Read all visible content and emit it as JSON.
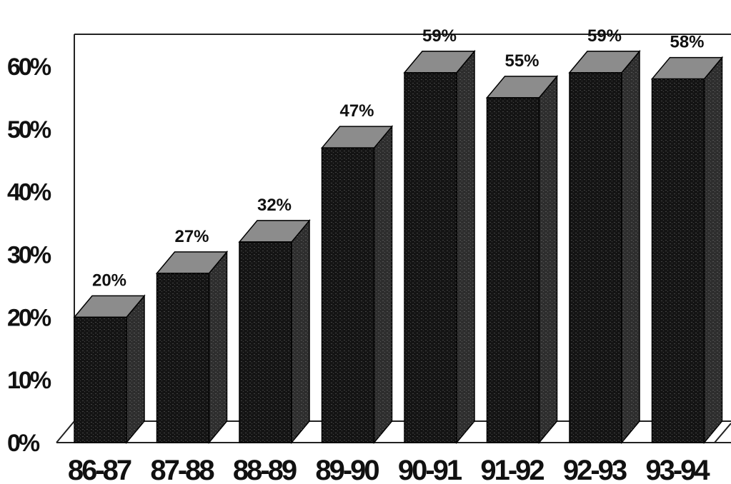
{
  "chart_data": {
    "type": "bar",
    "categories": [
      "86-87",
      "87-88",
      "88-89",
      "89-90",
      "90-91",
      "91-92",
      "92-93",
      "93-94"
    ],
    "values": [
      20,
      27,
      32,
      47,
      59,
      55,
      59,
      58
    ],
    "data_labels": [
      "20%",
      "27%",
      "32%",
      "47%",
      "59%",
      "55%",
      "59%",
      "58%"
    ],
    "ylim": [
      0,
      60
    ],
    "yticks": [
      0,
      10,
      20,
      30,
      40,
      50,
      60
    ],
    "ytick_labels": [
      "0%",
      "10%",
      "20%",
      "30%",
      "40%",
      "50%",
      "60%"
    ],
    "grid": false,
    "style": "3d-bar",
    "colors": {
      "bar_front": "#141414",
      "bar_side": "#2e2e2e",
      "bar_top": "#8c8c8c"
    }
  }
}
